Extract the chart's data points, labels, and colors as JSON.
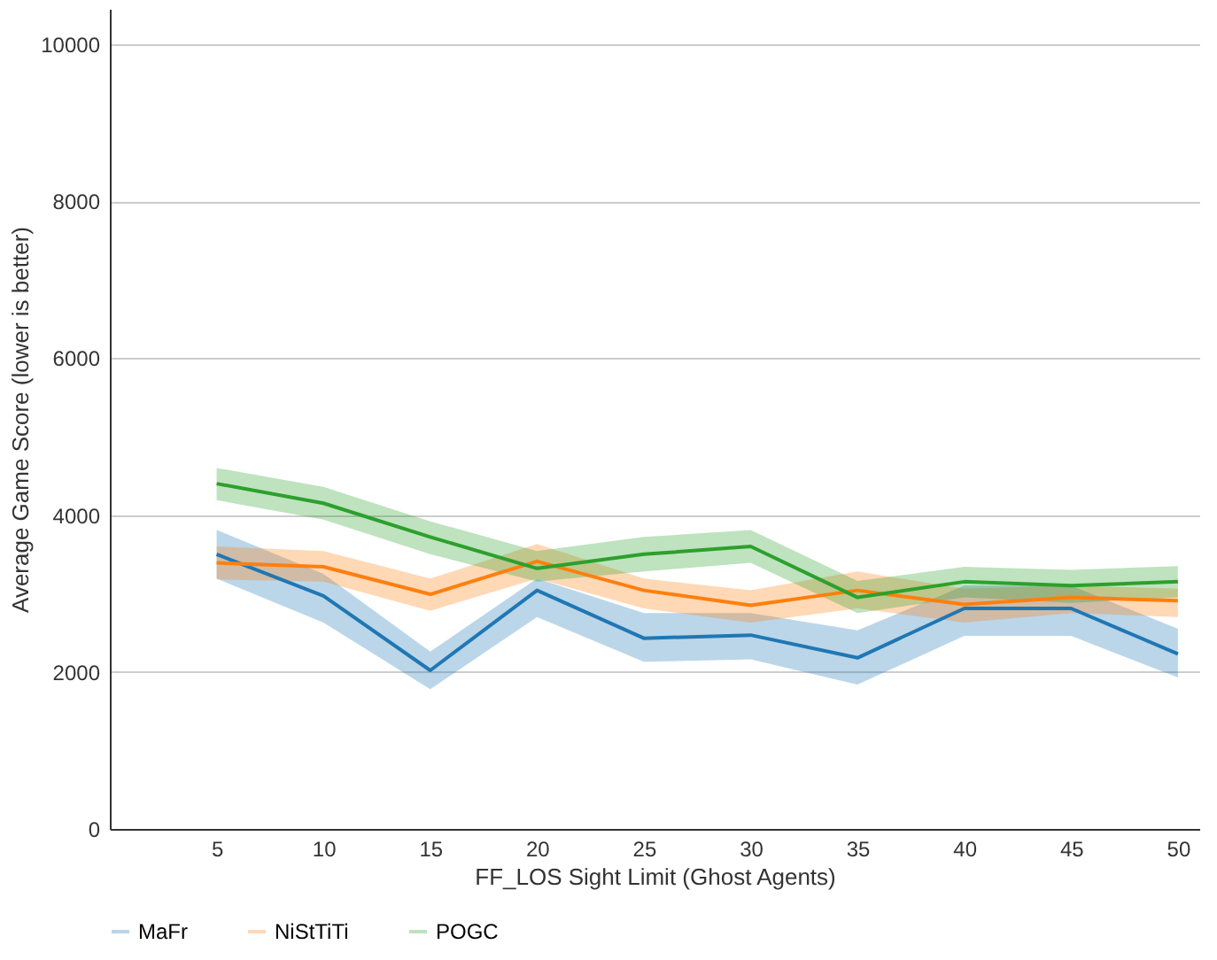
{
  "chart_data": {
    "type": "line",
    "xlabel": "FF_LOS Sight Limit (Ghost Agents)",
    "ylabel": "Average Game Score (lower is better)",
    "x": [
      5,
      10,
      15,
      20,
      25,
      30,
      35,
      40,
      45,
      50
    ],
    "series": [
      {
        "name": "MaFr",
        "color": "#1f77b4",
        "values": [
          3500,
          2970,
          2020,
          3040,
          2430,
          2470,
          2180,
          2810,
          2810,
          2230
        ],
        "lower": [
          3190,
          2630,
          1780,
          2700,
          2130,
          2160,
          1840,
          2460,
          2460,
          1930
        ],
        "upper": [
          3810,
          3250,
          2260,
          3190,
          2750,
          2750,
          2530,
          3100,
          3100,
          2550
        ]
      },
      {
        "name": "NiStTiTi",
        "color": "#ff7f0e",
        "values": [
          3390,
          3340,
          2990,
          3410,
          3040,
          2850,
          3040,
          2860,
          2950,
          2910
        ],
        "lower": [
          3180,
          3150,
          2780,
          3190,
          2810,
          2630,
          2810,
          2630,
          2750,
          2700
        ],
        "upper": [
          3600,
          3540,
          3190,
          3630,
          3190,
          3040,
          3280,
          3060,
          3100,
          3060
        ]
      },
      {
        "name": "POGC",
        "color": "#2ca02c",
        "values": [
          4400,
          4150,
          3720,
          3320,
          3500,
          3600,
          2950,
          3150,
          3100,
          3150
        ],
        "lower": [
          4190,
          3940,
          3500,
          3150,
          3280,
          3390,
          2750,
          2950,
          2880,
          2950
        ],
        "upper": [
          4600,
          4360,
          3920,
          3540,
          3720,
          3810,
          3160,
          3340,
          3300,
          3350
        ]
      }
    ],
    "xlim": [
      0,
      51
    ],
    "xticks": [
      5,
      10,
      15,
      20,
      25,
      30,
      35,
      40,
      45,
      50
    ],
    "ylim": [
      0,
      10450
    ],
    "yticks": [
      0,
      2000,
      4000,
      6000,
      8000,
      10000
    ],
    "grid": "y",
    "legend": "bottom",
    "line_style": "solid",
    "marker": "none"
  }
}
